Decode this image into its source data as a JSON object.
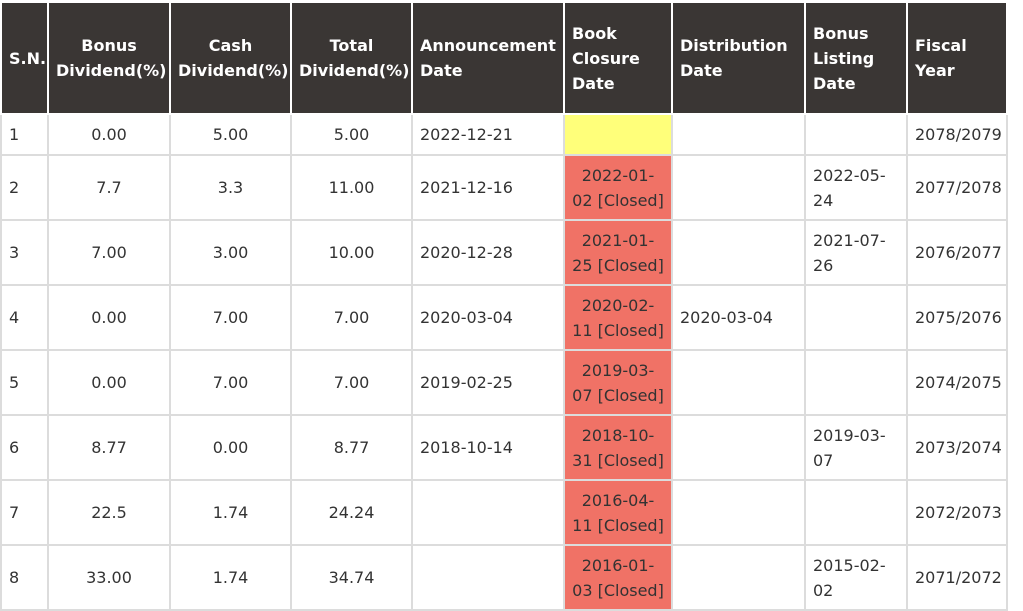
{
  "table": {
    "headers": [
      {
        "key": "sn",
        "label": "S.N."
      },
      {
        "key": "bonus",
        "label": "Bonus Dividend(%)"
      },
      {
        "key": "cash",
        "label": "Cash Dividend(%)"
      },
      {
        "key": "total",
        "label": "Total Dividend(%)"
      },
      {
        "key": "announcement",
        "label": "Announcement Date"
      },
      {
        "key": "book_closure",
        "label": "Book Closure Date"
      },
      {
        "key": "distribution",
        "label": "Distribution Date"
      },
      {
        "key": "bonus_listing",
        "label": "Bonus Listing Date"
      },
      {
        "key": "fiscal_year",
        "label": "Fiscal Year"
      }
    ],
    "rows": [
      {
        "sn": "1",
        "bonus": "0.00",
        "cash": "5.00",
        "total": "5.00",
        "announcement": "2022-12-21",
        "book_closure": "",
        "book_closure_status": "pending",
        "distribution": "",
        "bonus_listing": "",
        "fiscal_year": "2078/2079"
      },
      {
        "sn": "2",
        "bonus": "7.7",
        "cash": "3.3",
        "total": "11.00",
        "announcement": "2021-12-16",
        "book_closure": "2022-01-02 [Closed]",
        "book_closure_status": "closed",
        "distribution": "",
        "bonus_listing": "2022-05-24",
        "fiscal_year": "2077/2078"
      },
      {
        "sn": "3",
        "bonus": "7.00",
        "cash": "3.00",
        "total": "10.00",
        "announcement": "2020-12-28",
        "book_closure": "2021-01-25 [Closed]",
        "book_closure_status": "closed",
        "distribution": "",
        "bonus_listing": "2021-07-26",
        "fiscal_year": "2076/2077"
      },
      {
        "sn": "4",
        "bonus": "0.00",
        "cash": "7.00",
        "total": "7.00",
        "announcement": "2020-03-04",
        "book_closure": "2020-02-11 [Closed]",
        "book_closure_status": "closed",
        "distribution": "2020-03-04",
        "bonus_listing": "",
        "fiscal_year": "2075/2076"
      },
      {
        "sn": "5",
        "bonus": "0.00",
        "cash": "7.00",
        "total": "7.00",
        "announcement": "2019-02-25",
        "book_closure": "2019-03-07 [Closed]",
        "book_closure_status": "closed",
        "distribution": "",
        "bonus_listing": "",
        "fiscal_year": "2074/2075"
      },
      {
        "sn": "6",
        "bonus": "8.77",
        "cash": "0.00",
        "total": "8.77",
        "announcement": "2018-10-14",
        "book_closure": "2018-10-31 [Closed]",
        "book_closure_status": "closed",
        "distribution": "",
        "bonus_listing": "2019-03-07",
        "fiscal_year": "2073/2074"
      },
      {
        "sn": "7",
        "bonus": "22.5",
        "cash": "1.74",
        "total": "24.24",
        "announcement": "",
        "book_closure": "2016-04-11 [Closed]",
        "book_closure_status": "closed",
        "distribution": "",
        "bonus_listing": "",
        "fiscal_year": "2072/2073"
      },
      {
        "sn": "8",
        "bonus": "33.00",
        "cash": "1.74",
        "total": "34.74",
        "announcement": "",
        "book_closure": "2016-01-03 [Closed]",
        "book_closure_status": "closed",
        "distribution": "",
        "bonus_listing": "2015-02-02",
        "fiscal_year": "2071/2072"
      }
    ]
  },
  "colors": {
    "header_bg": "#3a3634",
    "closure_pending": "#ffff7a",
    "closure_closed": "#f07266",
    "grid_line": "#dcdcdc"
  }
}
